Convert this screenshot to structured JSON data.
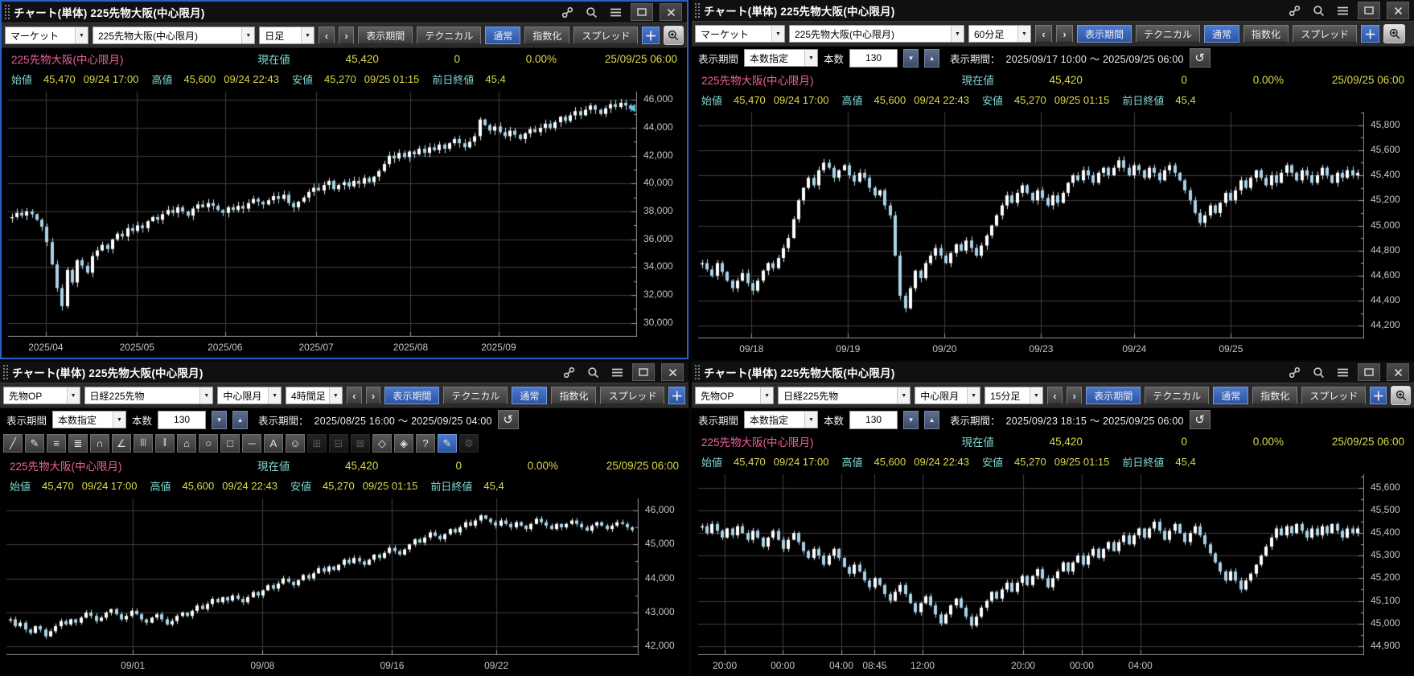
{
  "shared": {
    "title": "チャート(単体) 225先物大阪(中心限月)",
    "nav_prev": "‹",
    "nav_next": "›",
    "btn_display_period": "表示期間",
    "btn_technical": "テクニカル",
    "btn_normal": "通常",
    "btn_indexed": "指数化",
    "btn_spread": "スプレッド",
    "btn_add": "＋",
    "period_label": "表示期間",
    "period_mode": "本数指定",
    "count_label": "本数",
    "count_value": "130",
    "range_label": "表示期間：",
    "info": {
      "name": "225先物大阪(中心限月)",
      "cur_label": "現在値",
      "cur": "45,420",
      "chg": "0",
      "pct": "0.00%",
      "time": "25/09/25 06:00",
      "open_label": "始値",
      "open": "45,470",
      "open_time": "09/24 17:00",
      "high_label": "高値",
      "high": "45,600",
      "high_time": "09/24 22:43",
      "low_label": "安値",
      "low": "45,270",
      "low_time": "09/25 01:15",
      "prev_label": "前日終値",
      "prev": "45,4"
    },
    "colors": {
      "accent_blue": "#2b54a4",
      "active_border": "#2d5fc8",
      "name_pink": "#f0609e",
      "label_cyan": "#7fd6d2",
      "value_yellow": "#dcd94d",
      "candle_up": "#ffffff",
      "candle_down": "#a9d3e8",
      "grid": "#404040"
    }
  },
  "drawbar": {
    "tools": [
      {
        "name": "trend-line-tool",
        "glyph": "╱"
      },
      {
        "name": "freehand-tool",
        "glyph": "✎"
      },
      {
        "name": "horizontal-lines-tool",
        "glyph": "≡"
      },
      {
        "name": "grid-lines-tool",
        "glyph": "≣"
      },
      {
        "name": "fibonacci-arc-tool",
        "glyph": "∩"
      },
      {
        "name": "fan-lines-tool",
        "glyph": "∠"
      },
      {
        "name": "vertical-lines-tool",
        "glyph": "|||"
      },
      {
        "name": "speed-lines-tool",
        "glyph": "∥"
      },
      {
        "name": "polygon-tool",
        "glyph": "⌂"
      },
      {
        "name": "ellipse-tool",
        "glyph": "○"
      },
      {
        "name": "rectangle-tool",
        "glyph": "□"
      },
      {
        "name": "horizontal-line-tool",
        "glyph": "─"
      },
      {
        "name": "text-tool",
        "glyph": "A"
      },
      {
        "name": "icon-stamp-tool",
        "glyph": "☺"
      },
      {
        "name": "note-stamp-tool",
        "glyph": "⊞",
        "dim": true
      },
      {
        "name": "copy-object-tool",
        "glyph": "⊟",
        "dim": true
      },
      {
        "name": "select-object-tool",
        "glyph": "⊠",
        "dim": true
      },
      {
        "name": "eraser-tool",
        "glyph": "◇"
      },
      {
        "name": "eraser-object-tool",
        "glyph": "◈"
      },
      {
        "name": "help-tool",
        "glyph": "?"
      },
      {
        "name": "lock-drawing-tool",
        "glyph": "✎",
        "active": true
      },
      {
        "name": "draw-settings-tool",
        "glyph": "⚙",
        "dim": true
      }
    ]
  },
  "panels": [
    {
      "selects": [
        {
          "value": "マーケット"
        },
        {
          "value": "225先物大阪(中心限月)"
        },
        {
          "value": "日足"
        }
      ],
      "display_period_active": false,
      "chart_data": {
        "type": "candlestick",
        "timeframe": "日足",
        "axis_min": 29000,
        "axis_max": 46600,
        "y_minor": 1000,
        "y_ticks": [
          {
            "v": 46000,
            "label": "46,000"
          },
          {
            "v": 44000,
            "label": "44,000"
          },
          {
            "v": 42000,
            "label": "42,000"
          },
          {
            "v": 40000,
            "label": "40,000"
          },
          {
            "v": 38000,
            "label": "38,000"
          },
          {
            "v": 36000,
            "label": "36,000"
          },
          {
            "v": 34000,
            "label": "34,000"
          },
          {
            "v": 32000,
            "label": "32,000"
          },
          {
            "v": 30000,
            "label": "30,000"
          }
        ],
        "x_labels": [
          {
            "t": "2025/04",
            "p": 0.06
          },
          {
            "t": "2025/05",
            "p": 0.205
          },
          {
            "t": "2025/06",
            "p": 0.345
          },
          {
            "t": "2025/07",
            "p": 0.49
          },
          {
            "t": "2025/08",
            "p": 0.64
          },
          {
            "t": "2025/09",
            "p": 0.78
          }
        ],
        "marker": {
          "v": 45420,
          "color": "#56c5e8"
        },
        "closes": [
          37600,
          37900,
          37700,
          38000,
          37800,
          37400,
          36900,
          35800,
          34200,
          32500,
          31200,
          33800,
          32900,
          34500,
          34100,
          33600,
          34800,
          35200,
          35600,
          35300,
          36000,
          36400,
          36200,
          36800,
          36600,
          37000,
          36800,
          37300,
          37600,
          37400,
          37800,
          38100,
          37900,
          38300,
          38000,
          37700,
          38200,
          38500,
          38300,
          38600,
          38400,
          38100,
          37900,
          38300,
          38100,
          38400,
          38200,
          38600,
          38900,
          38700,
          38500,
          38800,
          39100,
          38900,
          39200,
          38600,
          38300,
          38700,
          39000,
          39400,
          39700,
          39500,
          39900,
          40200,
          39600,
          39900,
          40100,
          39800,
          40200,
          40000,
          40400,
          40100,
          40500,
          40900,
          41400,
          42000,
          41800,
          42200,
          41900,
          42300,
          42100,
          42500,
          42200,
          42600,
          42400,
          42800,
          42500,
          42900,
          43200,
          42900,
          42600,
          43000,
          43400,
          44600,
          44200,
          43800,
          44100,
          43700,
          43400,
          43800,
          43500,
          43200,
          43600,
          43900,
          43700,
          44000,
          44300,
          44000,
          44400,
          44800,
          44500,
          44900,
          45200,
          44900,
          45300,
          45600,
          45300,
          45000,
          45400,
          45700,
          45500,
          45800,
          45600,
          45420
        ]
      }
    },
    {
      "selects": [
        {
          "value": "マーケット"
        },
        {
          "value": "225先物大阪(中心限月)"
        },
        {
          "value": "60分足"
        }
      ],
      "display_period_active": true,
      "period_range": "2025/09/17 10:00 ～ 2025/09/25 06:00",
      "chart_data": {
        "type": "candlestick",
        "timeframe": "60分足",
        "axis_min": 44100,
        "axis_max": 45900,
        "y_minor": 100,
        "y_ticks": [
          {
            "v": 45800,
            "label": "45,800"
          },
          {
            "v": 45600,
            "label": "45,600"
          },
          {
            "v": 45400,
            "label": "45,400"
          },
          {
            "v": 45200,
            "label": "45,200"
          },
          {
            "v": 45000,
            "label": "45,000"
          },
          {
            "v": 44800,
            "label": "44,800"
          },
          {
            "v": 44600,
            "label": "44,600"
          },
          {
            "v": 44400,
            "label": "44,400"
          },
          {
            "v": 44200,
            "label": "44,200"
          }
        ],
        "x_labels": [
          {
            "t": "09/18",
            "p": 0.08
          },
          {
            "t": "09/19",
            "p": 0.225
          },
          {
            "t": "09/20",
            "p": 0.37
          },
          {
            "t": "09/23",
            "p": 0.515
          },
          {
            "t": "09/24",
            "p": 0.655
          },
          {
            "t": "09/25",
            "p": 0.8
          }
        ],
        "closes": [
          44700,
          44650,
          44600,
          44700,
          44630,
          44560,
          44500,
          44560,
          44620,
          44540,
          44480,
          44560,
          44640,
          44700,
          44660,
          44740,
          44820,
          44900,
          45050,
          45200,
          45300,
          45380,
          45320,
          45440,
          45500,
          45460,
          45380,
          45440,
          45480,
          45400,
          45350,
          45420,
          45380,
          45300,
          45240,
          45280,
          45160,
          45080,
          44760,
          44440,
          44340,
          44500,
          44640,
          44580,
          44700,
          44760,
          44820,
          44760,
          44700,
          44780,
          44850,
          44800,
          44880,
          44820,
          44760,
          44840,
          44920,
          45000,
          45080,
          45160,
          45240,
          45180,
          45260,
          45320,
          45260,
          45200,
          45280,
          45220,
          45160,
          45240,
          45180,
          45260,
          45340,
          45400,
          45360,
          45440,
          45400,
          45340,
          45420,
          45460,
          45400,
          45460,
          45520,
          45460,
          45400,
          45480,
          45440,
          45380,
          45460,
          45420,
          45360,
          45440,
          45480,
          45420,
          45360,
          45280,
          45200,
          45100,
          45020,
          45080,
          45160,
          45100,
          45180,
          45260,
          45200,
          45280,
          45360,
          45300,
          45380,
          45440,
          45380,
          45320,
          45400,
          45340,
          45420,
          45480,
          45420,
          45360,
          45440,
          45400,
          45340,
          45400,
          45460,
          45400,
          45340,
          45420,
          45380,
          45440,
          45400,
          45420
        ]
      }
    },
    {
      "selects": [
        {
          "value": "先物OP"
        },
        {
          "value": "日経225先物"
        },
        {
          "value": "中心限月"
        },
        {
          "value": "4時間足"
        }
      ],
      "display_period_active": true,
      "period_range": "2025/08/25 16:00 ～ 2025/09/25 04:00",
      "chart_data": {
        "type": "candlestick",
        "timeframe": "4時間足",
        "axis_min": 41750,
        "axis_max": 46350,
        "y_minor": 500,
        "y_ticks": [
          {
            "v": 46000,
            "label": "46,000"
          },
          {
            "v": 45000,
            "label": "45,000"
          },
          {
            "v": 44000,
            "label": "44,000"
          },
          {
            "v": 43000,
            "label": "43,000"
          },
          {
            "v": 42000,
            "label": "42,000"
          }
        ],
        "x_labels": [
          {
            "t": "09/01",
            "p": 0.2
          },
          {
            "t": "09/08",
            "p": 0.405
          },
          {
            "t": "09/16",
            "p": 0.61
          },
          {
            "t": "09/22",
            "p": 0.775
          }
        ],
        "closes": [
          42800,
          42600,
          42700,
          42500,
          42400,
          42600,
          42500,
          42300,
          42450,
          42600,
          42750,
          42650,
          42800,
          42700,
          42850,
          43000,
          42900,
          42750,
          42850,
          43000,
          43100,
          42950,
          42800,
          42900,
          43050,
          42950,
          42800,
          42700,
          42850,
          42950,
          42800,
          42650,
          42750,
          42900,
          43000,
          42900,
          43050,
          43200,
          43100,
          43250,
          43400,
          43300,
          43450,
          43350,
          43500,
          43400,
          43300,
          43450,
          43600,
          43500,
          43650,
          43800,
          43700,
          43850,
          44000,
          43900,
          43800,
          43950,
          44100,
          44000,
          44150,
          44300,
          44200,
          44350,
          44250,
          44400,
          44550,
          44450,
          44600,
          44500,
          44400,
          44550,
          44700,
          44600,
          44750,
          44900,
          44800,
          44700,
          44850,
          45000,
          45150,
          45050,
          45200,
          45350,
          45250,
          45150,
          45300,
          45450,
          45350,
          45500,
          45650,
          45550,
          45700,
          45850,
          45750,
          45650,
          45550,
          45700,
          45600,
          45500,
          45650,
          45550,
          45450,
          45600,
          45750,
          45650,
          45550,
          45450,
          45600,
          45500,
          45600,
          45700,
          45600,
          45500,
          45400,
          45550,
          45650,
          45550,
          45450,
          45550,
          45650,
          45600,
          45500,
          45420
        ]
      }
    },
    {
      "selects": [
        {
          "value": "先物OP"
        },
        {
          "value": "日経225先物"
        },
        {
          "value": "中心限月"
        },
        {
          "value": "15分足"
        }
      ],
      "display_period_active": true,
      "period_range": "2025/09/23 18:15 ～ 2025/09/25 06:00",
      "chart_data": {
        "type": "candlestick",
        "timeframe": "15分足",
        "axis_min": 44860,
        "axis_max": 45660,
        "y_minor": 50,
        "y_ticks": [
          {
            "v": 45600,
            "label": "45,600"
          },
          {
            "v": 45500,
            "label": "45,500"
          },
          {
            "v": 45400,
            "label": "45,400"
          },
          {
            "v": 45300,
            "label": "45,300"
          },
          {
            "v": 45200,
            "label": "45,200"
          },
          {
            "v": 45100,
            "label": "45,100"
          },
          {
            "v": 45000,
            "label": "45,000"
          },
          {
            "v": 44900,
            "label": "44,900"
          }
        ],
        "x_labels": [
          {
            "t": "20:00",
            "p": 0.04
          },
          {
            "t": "00:00",
            "p": 0.127
          },
          {
            "t": "04:00",
            "p": 0.215
          },
          {
            "t": "08:45",
            "p": 0.265
          },
          {
            "t": "12:00",
            "p": 0.337
          },
          {
            "t": "20:00",
            "p": 0.488
          },
          {
            "t": "00:00",
            "p": 0.576
          },
          {
            "t": "04:00",
            "p": 0.664
          }
        ],
        "closes": [
          45430,
          45400,
          45440,
          45410,
          45380,
          45420,
          45390,
          45430,
          45400,
          45370,
          45410,
          45380,
          45340,
          45380,
          45410,
          45370,
          45330,
          45370,
          45400,
          45360,
          45320,
          45290,
          45330,
          45300,
          45260,
          45300,
          45330,
          45290,
          45250,
          45220,
          45260,
          45230,
          45190,
          45160,
          45200,
          45170,
          45130,
          45100,
          45140,
          45170,
          45130,
          45090,
          45050,
          45090,
          45120,
          45080,
          45040,
          45000,
          45040,
          45080,
          45110,
          45070,
          45030,
          44990,
          45030,
          45070,
          45100,
          45140,
          45110,
          45150,
          45180,
          45140,
          45180,
          45210,
          45170,
          45210,
          45240,
          45200,
          45160,
          45200,
          45230,
          45270,
          45230,
          45270,
          45300,
          45260,
          45300,
          45330,
          45290,
          45330,
          45360,
          45320,
          45360,
          45390,
          45350,
          45390,
          45420,
          45380,
          45420,
          45450,
          45410,
          45370,
          45410,
          45440,
          45400,
          45360,
          45400,
          45430,
          45390,
          45350,
          45310,
          45270,
          45230,
          45190,
          45230,
          45190,
          45150,
          45190,
          45220,
          45260,
          45300,
          45340,
          45380,
          45420,
          45390,
          45430,
          45400,
          45440,
          45410,
          45380,
          45420,
          45390,
          45430,
          45400,
          45440,
          45410,
          45380,
          45420,
          45400,
          45420
        ]
      }
    }
  ]
}
